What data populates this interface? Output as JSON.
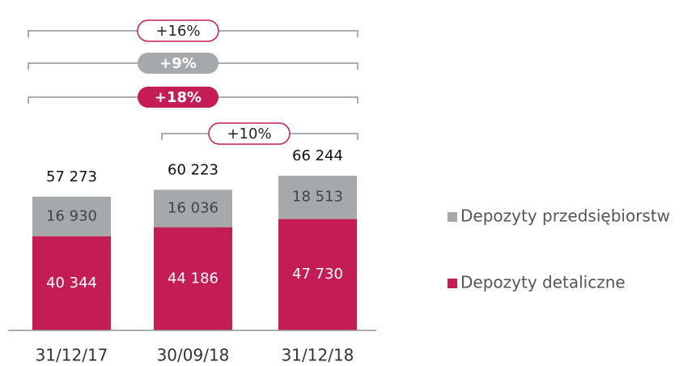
{
  "chart_data": {
    "type": "stacked_bar",
    "categories": [
      "31/12/17",
      "30/09/18",
      "31/12/18"
    ],
    "series": [
      {
        "name": "Depozyty detaliczne",
        "color": "#c41c55",
        "values": [
          40344,
          44186,
          47730
        ],
        "value_labels": [
          "40 344",
          "44 186",
          "47 730"
        ]
      },
      {
        "name": "Depozyty przedsiębiorstw",
        "color": "#a5a9ac",
        "values": [
          16930,
          16036,
          18513
        ],
        "value_labels": [
          "16 930",
          "16 036",
          "18 513"
        ]
      }
    ],
    "totals": [
      57273,
      60223,
      66244
    ],
    "total_labels": [
      "57 273",
      "60 223",
      "66 244"
    ],
    "annotations": [
      "+16%",
      "+9%",
      "+18%",
      "+10%"
    ]
  }
}
